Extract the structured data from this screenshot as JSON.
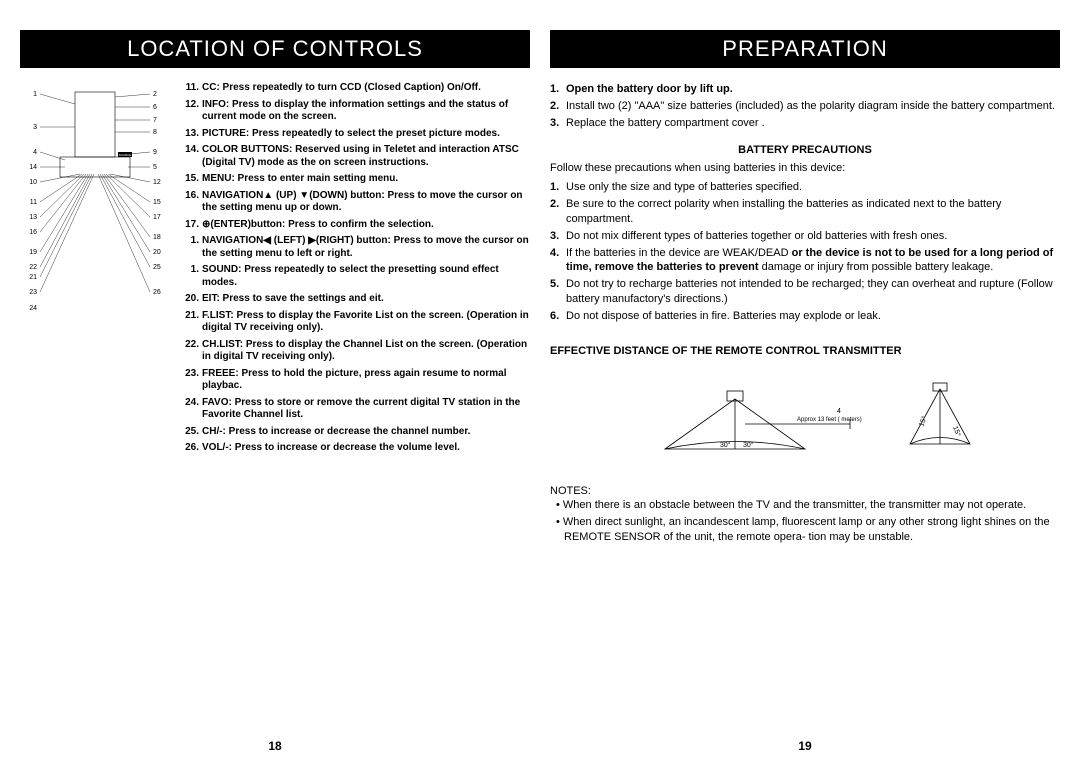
{
  "left": {
    "title": "LOCATION OF CONTROLS",
    "pagenum": "18",
    "items": [
      {
        "n": "11.",
        "t": "<b>CC: Press repeatedly to turn CCD (Closed Caption) On/Off.</b>"
      },
      {
        "n": "12.",
        "t": "<b>INFO: Press to display the information settings and the status of current mode on the screen.</b>"
      },
      {
        "n": "13.",
        "t": "<b>PICTURE: Press repeatedly to select the preset picture modes.</b>"
      },
      {
        "n": "14.",
        "t": "<b>COLOR BUTTONS: Reserved using in Teletet and interaction ATSC (Digital TV) mode as the on screen instructions.</b>"
      },
      {
        "n": "15.",
        "t": "<b>MENU: Press to enter main setting menu.</b>"
      },
      {
        "n": "16.",
        "t": "<b>NAVIGATION▲ (UP) ▼(DOWN) button: Press to move the cursor on the setting menu up or down.</b>"
      },
      {
        "n": "17.",
        "t": "<b>⊕(ENTER)button: Press to confirm the selection.</b>"
      },
      {
        "n": "1.",
        "t": "<b>NAVIGATION◀ (LEFT) ▶(RIGHT) button: Press to move the cursor on the setting menu to left or right.</b>"
      },
      {
        "n": "1.",
        "t": "<b>SOUND: Press repeatedly to select the presetting sound effect modes.</b>"
      },
      {
        "n": "20.",
        "t": "<b>EIT: Press to save the settings and eit.</b>"
      },
      {
        "n": "21.",
        "t": "<b>F.LIST: Press to display the Favorite List on the screen. (Operation in digital TV receiving only).</b>"
      },
      {
        "n": "22.",
        "t": "<b>CH.LIST: Press to display the Channel List on the screen. (Operation in digital TV receiving only).</b>"
      },
      {
        "n": "23.",
        "t": "<b>FREEE: Press to hold the picture, press again resume to normal playbac.</b>"
      },
      {
        "n": "24.",
        "t": "<b>FAVO: Press to store or remove the current digital TV station in the Favorite Channel list.</b>"
      },
      {
        "n": "25.",
        "t": "<b>CH/-: Press to increase or decrease the channel number.</b>"
      },
      {
        "n": "26.",
        "t": "<b>VOL/-: Press to increase or decrease the volume level.</b>"
      }
    ],
    "diagram_labels_left": [
      "1",
      "3",
      "4",
      "14",
      "10",
      "11",
      "13",
      "16",
      "19",
      "22",
      "21",
      "23",
      "24"
    ],
    "diagram_labels_right": [
      "2",
      "6",
      "7",
      "8",
      "9",
      "5",
      "12",
      "15",
      "17",
      "18",
      "20",
      "25",
      "26"
    ]
  },
  "right": {
    "title": "PREPARATION",
    "pagenum": "19",
    "steps": [
      {
        "n": "1.",
        "t": "<b>Open the battery door by lift up.</b>"
      },
      {
        "n": "2.",
        "t": "Install two (2) \"AAA\" size batteries (included) as the polarity diagram inside the battery compartment."
      },
      {
        "n": "3.",
        "t": "Replace the battery compartment cover ."
      }
    ],
    "precautions_title": "BATTERY PRECAUTIONS",
    "precautions_intro": "Follow these precautions when using batteries in this device:",
    "precautions": [
      {
        "n": "1.",
        "t": "Use only the size and type of batteries specified."
      },
      {
        "n": "2.",
        "t": "Be sure to the correct polarity when installing the batteries as indicated next to the battery compartment."
      },
      {
        "n": "3.",
        "t": "Do not mix different types of batteries together or old batteries with fresh ones."
      },
      {
        "n": "4.",
        "t": "If the batteries in the device are WEAK/DEAD <b>or the device is not to be used for a long period of time, remove the batteries to prevent</b> damage or injury from possible battery leakage."
      },
      {
        "n": "5.",
        "t": "Do not try to recharge batteries not intended to be recharged; they can overheat and rupture (Follow battery manufactory's directions.)"
      },
      {
        "n": "6.",
        "t": "Do not dispose of batteries in fire. Batteries may explode or leak."
      }
    ],
    "distance_title": "EFFECTIVE DISTANCE OF THE REMOTE CONTROL TRANSMITTER",
    "distance_label_approx": "Approx 13 feet ( meters)",
    "distance_label_4": "4",
    "distance_angle_h": "30°",
    "distance_angle_v": "15°",
    "notes_title": "NOTES:",
    "notes": [
      "When there is an obstacle between the TV and the transmitter, the transmitter may not operate.",
      "When direct sunlight, an incandescent lamp, fluorescent lamp or any other strong light shines on the REMOTE SENSOR of the unit, the remote opera- tion may be unstable."
    ]
  },
  "colors": {
    "bg": "#ffffff",
    "text": "#000000",
    "header_bg": "#000000",
    "header_fg": "#ffffff"
  }
}
